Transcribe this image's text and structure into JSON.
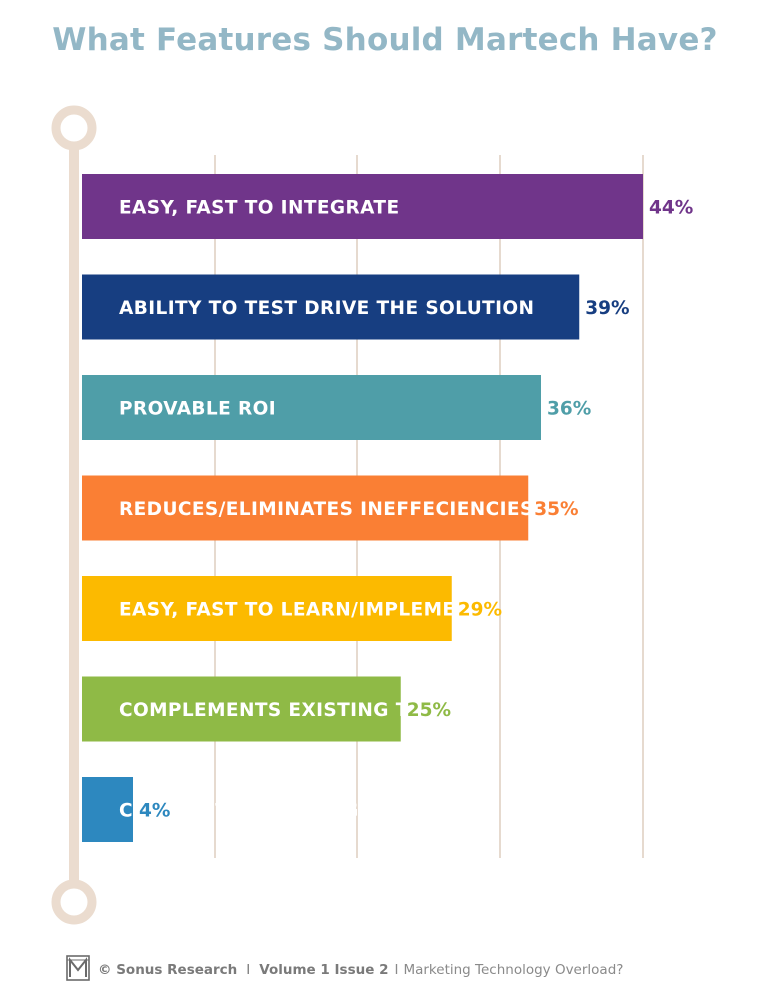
{
  "title": "What Features Should Martech Have?",
  "colors": {
    "title": "#93b7c6",
    "timeline": "#ebdccf",
    "gridline": "#e6dacf",
    "footer_text": "#8a8a8a"
  },
  "chart_data": {
    "type": "bar",
    "orientation": "horizontal",
    "title": "What Features Should Martech Have?",
    "categories": [
      "EASY, FAST TO INTEGRATE",
      "ABILITY TO TEST DRIVE THE SOLUTION",
      "PROVABLE ROI",
      "REDUCES/ELIMINATES INEFFECIENCIES",
      "EASY, FAST TO LEARN/IMPLEMENT",
      "COMPLEMENTS EXISTING TECH",
      "COMPETITIVE PRICING"
    ],
    "values": [
      44,
      39,
      36,
      35,
      29,
      25,
      4
    ],
    "value_labels": [
      "44%",
      "39%",
      "36%",
      "35%",
      "29%",
      "25%",
      "4%"
    ],
    "bar_colors": [
      "#70358a",
      "#173e81",
      "#4f9ea8",
      "#fa7f34",
      "#fcba00",
      "#8fba46",
      "#2d88bf"
    ],
    "grid": true
  },
  "footer": {
    "logo_icon": "sonus-m-logo-icon",
    "copyright": "© Sonus Research",
    "separator": "I",
    "volume": "Volume 1 Issue 2",
    "separator2": "I",
    "subtitle": "Marketing Technology Overload?"
  }
}
